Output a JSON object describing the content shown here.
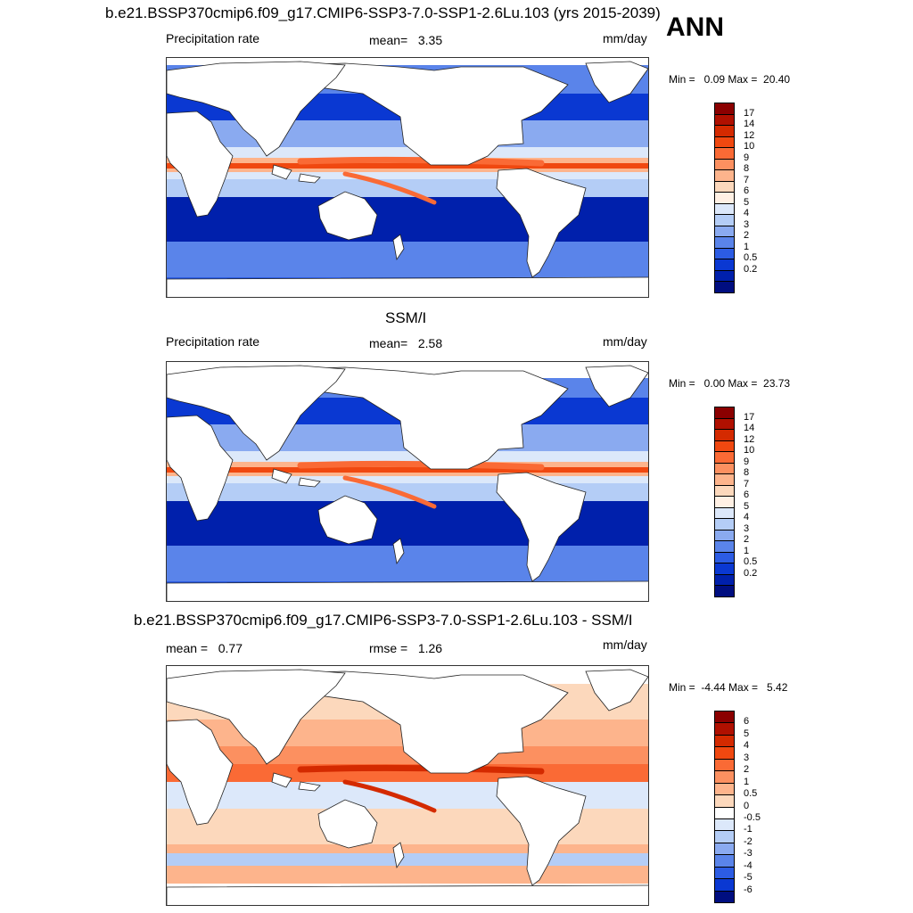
{
  "season": "ANN",
  "panels": [
    {
      "id": "model",
      "title": "b.e21.BSSP370cmip6.f09_g17.CMIP6-SSP3-7.0-SSP1-2.6Lu.103 (yrs 2015-2039)",
      "left_label": "Precipitation rate",
      "center_label": "mean=   3.35",
      "right_label": "mm/day",
      "minmax": "Min =   0.09 Max =  20.40",
      "field": "abs"
    },
    {
      "id": "obs",
      "title": "SSM/I",
      "left_label": "Precipitation rate",
      "center_label": "mean=   2.58",
      "right_label": "mm/day",
      "minmax": "Min =   0.00 Max =  23.73",
      "field": "abs"
    },
    {
      "id": "diff",
      "title": "b.e21.BSSP370cmip6.f09_g17.CMIP6-SSP3-7.0-SSP1-2.6Lu.103 - SSM/I",
      "left_label": "mean =   0.77",
      "center_label": "rmse =   1.26",
      "right_label": "mm/day",
      "minmax": "Min =  -4.44 Max =   5.42",
      "field": "diff"
    }
  ],
  "colorbars": {
    "abs": {
      "labels": [
        "17",
        "14",
        "12",
        "10",
        "9",
        "8",
        "7",
        "6",
        "5",
        "4",
        "3",
        "2",
        "1",
        "0.5",
        "0.2"
      ],
      "colors": [
        "#8b0000",
        "#b01000",
        "#d42a00",
        "#f04810",
        "#fa6a35",
        "#fc9060",
        "#fdb48c",
        "#fcd8bc",
        "#fff0e4",
        "#dce8fa",
        "#b4cdf6",
        "#8aaaf0",
        "#5a84ea",
        "#2c5ce4",
        "#0a38d2",
        "#0020ac",
        "#000e80"
      ]
    },
    "diff": {
      "labels": [
        "6",
        "5",
        "4",
        "3",
        "2",
        "1",
        "0.5",
        "0",
        "-0.5",
        "-1",
        "-2",
        "-3",
        "-4",
        "-5",
        "-6"
      ],
      "colors": [
        "#8b0000",
        "#b01000",
        "#d42a00",
        "#f04810",
        "#fa6a35",
        "#fc9060",
        "#fdb48c",
        "#fcd8bc",
        "#ffffff",
        "#dce8fa",
        "#b4cdf6",
        "#8aaaf0",
        "#5a84ea",
        "#2c5ce4",
        "#0a38d2",
        "#000e80"
      ]
    }
  }
}
